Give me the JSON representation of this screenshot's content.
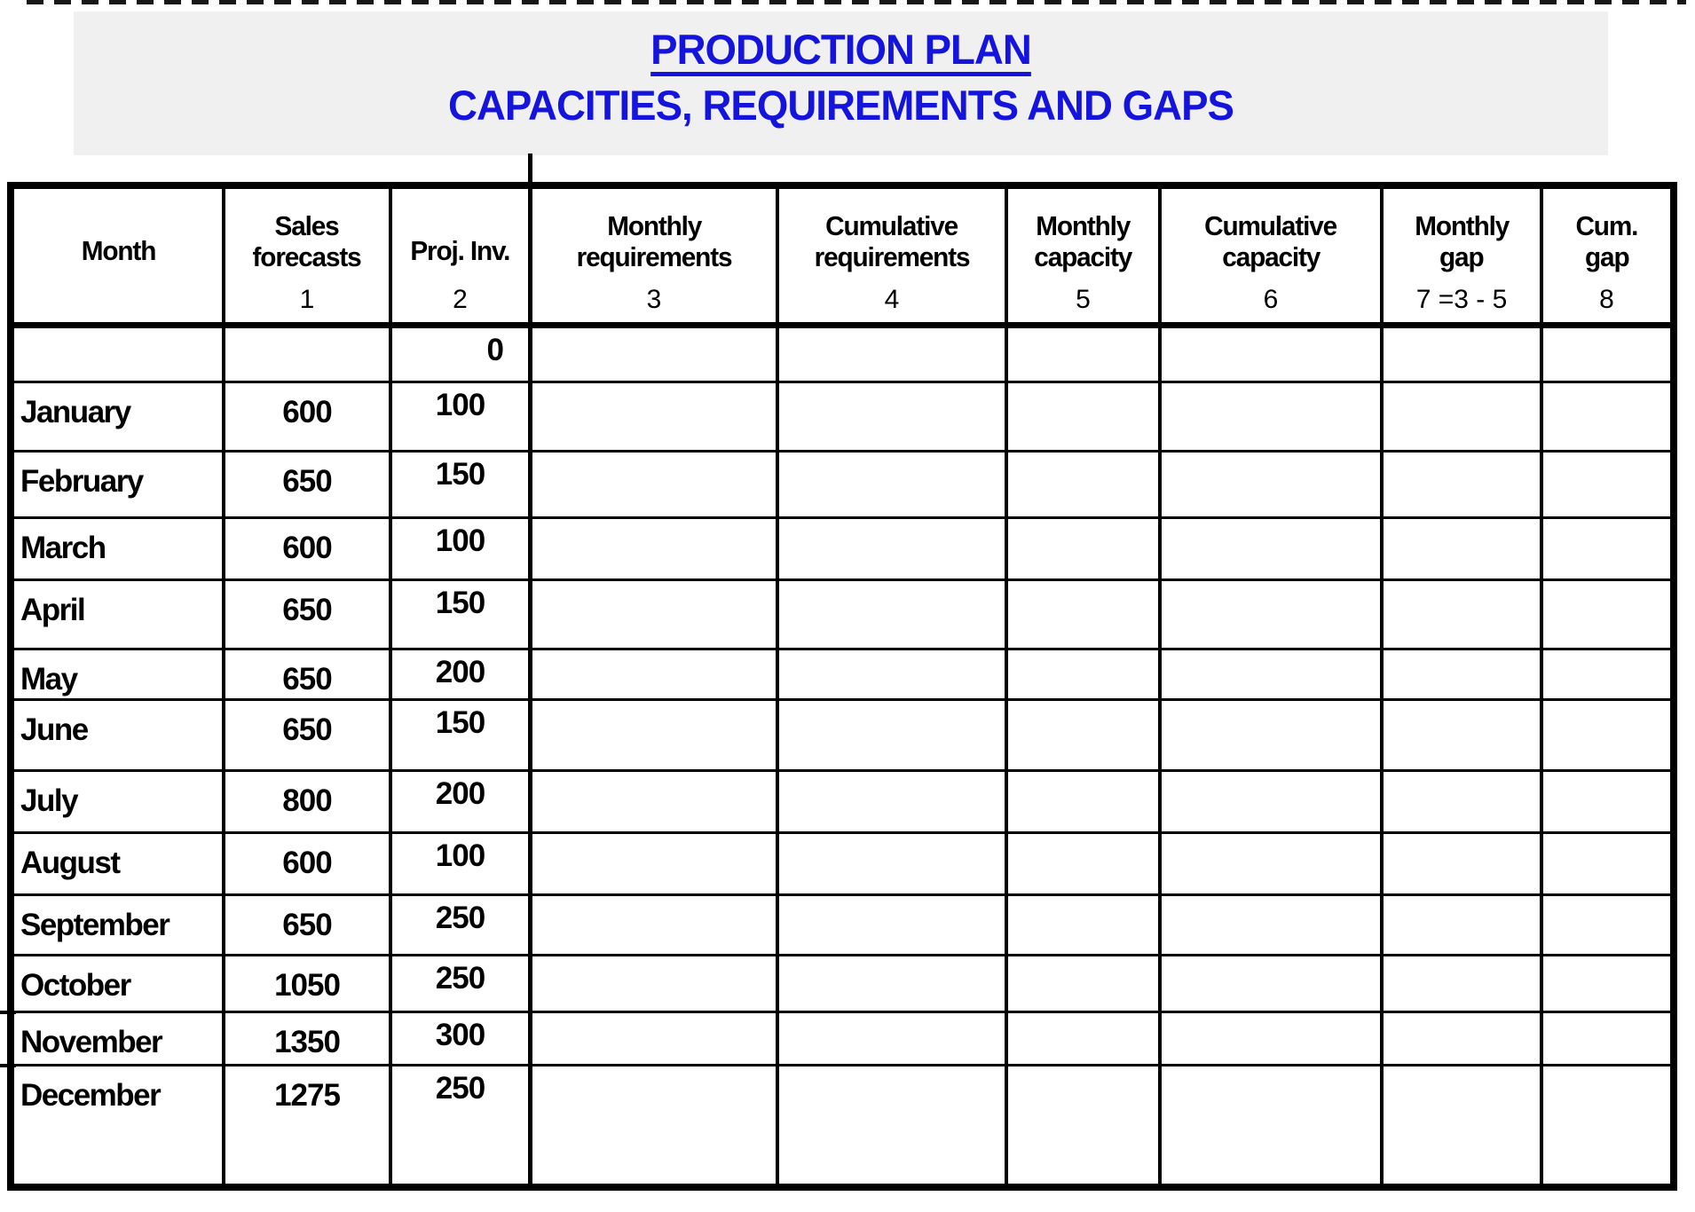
{
  "title": {
    "line1": "PRODUCTION PLAN",
    "line2": "CAPACITIES, REQUIREMENTS AND GAPS"
  },
  "colors": {
    "title_blue": "#1414dd",
    "banner_bg": "#f0f0f0",
    "table_line": "#000000"
  },
  "table": {
    "columns": [
      {
        "id": "month",
        "line1": "Month",
        "line2": "",
        "sub": ""
      },
      {
        "id": "sales",
        "line1": "Sales",
        "line2": "forecasts",
        "sub": "1"
      },
      {
        "id": "proj_inv",
        "line1": "Proj. Inv.",
        "line2": "",
        "sub": "2"
      },
      {
        "id": "monthly_req",
        "line1": "Monthly",
        "line2": "requirements",
        "sub": "3"
      },
      {
        "id": "cum_req",
        "line1": "Cumulative",
        "line2": "requirements",
        "sub": "4"
      },
      {
        "id": "monthly_cap",
        "line1": "Monthly",
        "line2": "capacity",
        "sub": "5"
      },
      {
        "id": "cum_cap",
        "line1": "Cumulative",
        "line2": "capacity",
        "sub": "6"
      },
      {
        "id": "monthly_gap",
        "line1": "Monthly",
        "line2": "gap",
        "sub": "7 =3 - 5"
      },
      {
        "id": "cum_gap",
        "line1": "Cum.",
        "line2": "gap",
        "sub": "8"
      }
    ],
    "rows": [
      {
        "month": "",
        "sales": "",
        "proj_inv": "0",
        "monthly_req": "",
        "cum_req": "",
        "monthly_cap": "",
        "cum_cap": "",
        "monthly_gap": "",
        "cum_gap": ""
      },
      {
        "month": "January",
        "sales": "600",
        "proj_inv": "100",
        "monthly_req": "",
        "cum_req": "",
        "monthly_cap": "",
        "cum_cap": "",
        "monthly_gap": "",
        "cum_gap": ""
      },
      {
        "month": "February",
        "sales": "650",
        "proj_inv": "150",
        "monthly_req": "",
        "cum_req": "",
        "monthly_cap": "",
        "cum_cap": "",
        "monthly_gap": "",
        "cum_gap": ""
      },
      {
        "month": "March",
        "sales": "600",
        "proj_inv": "100",
        "monthly_req": "",
        "cum_req": "",
        "monthly_cap": "",
        "cum_cap": "",
        "monthly_gap": "",
        "cum_gap": ""
      },
      {
        "month": "April",
        "sales": "650",
        "proj_inv": "150",
        "monthly_req": "",
        "cum_req": "",
        "monthly_cap": "",
        "cum_cap": "",
        "monthly_gap": "",
        "cum_gap": ""
      },
      {
        "month": "May",
        "sales": "650",
        "proj_inv": "200",
        "monthly_req": "",
        "cum_req": "",
        "monthly_cap": "",
        "cum_cap": "",
        "monthly_gap": "",
        "cum_gap": ""
      },
      {
        "month": "June",
        "sales": "650",
        "proj_inv": "150",
        "monthly_req": "",
        "cum_req": "",
        "monthly_cap": "",
        "cum_cap": "",
        "monthly_gap": "",
        "cum_gap": ""
      },
      {
        "month": "July",
        "sales": "800",
        "proj_inv": "200",
        "monthly_req": "",
        "cum_req": "",
        "monthly_cap": "",
        "cum_cap": "",
        "monthly_gap": "",
        "cum_gap": ""
      },
      {
        "month": "August",
        "sales": "600",
        "proj_inv": "100",
        "monthly_req": "",
        "cum_req": "",
        "monthly_cap": "",
        "cum_cap": "",
        "monthly_gap": "",
        "cum_gap": ""
      },
      {
        "month": "September",
        "sales": "650",
        "proj_inv": "250",
        "monthly_req": "",
        "cum_req": "",
        "monthly_cap": "",
        "cum_cap": "",
        "monthly_gap": "",
        "cum_gap": ""
      },
      {
        "month": "October",
        "sales": "1050",
        "proj_inv": "250",
        "monthly_req": "",
        "cum_req": "",
        "monthly_cap": "",
        "cum_cap": "",
        "monthly_gap": "",
        "cum_gap": ""
      },
      {
        "month": "November",
        "sales": "1350",
        "proj_inv": "300",
        "monthly_req": "",
        "cum_req": "",
        "monthly_cap": "",
        "cum_cap": "",
        "monthly_gap": "",
        "cum_gap": ""
      },
      {
        "month": "December",
        "sales": "1275",
        "proj_inv": "250",
        "monthly_req": "",
        "cum_req": "",
        "monthly_cap": "",
        "cum_cap": "",
        "monthly_gap": "",
        "cum_gap": ""
      }
    ]
  }
}
